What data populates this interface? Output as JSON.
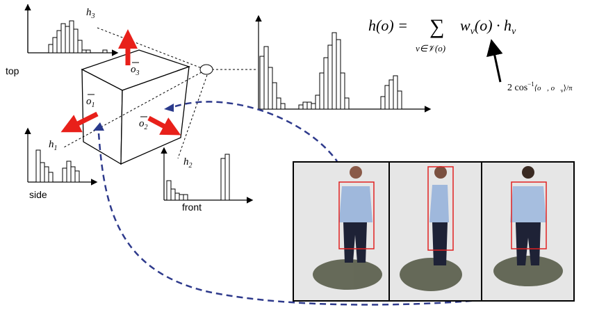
{
  "labels": {
    "top": "top",
    "side": "side",
    "front": "front"
  },
  "histograms": [
    {
      "symbol": "h",
      "subscript": "1"
    },
    {
      "symbol": "h",
      "subscript": "2"
    },
    {
      "symbol": "h",
      "subscript": "3"
    }
  ],
  "orientations": [
    {
      "symbol": "o",
      "subscript": "1"
    },
    {
      "symbol": "o",
      "subscript": "2"
    },
    {
      "symbol": "o",
      "subscript": "3"
    }
  ],
  "formula": {
    "lhs": "h(o) =",
    "sum": "∑",
    "sum_index": "v∈𝒱(o)",
    "weight": "w",
    "weight_sub": "v",
    "middle": "(o) · h",
    "h_sub": "v"
  },
  "weight_note": {
    "prefix": "2 cos",
    "power": "−1",
    "argument": "⟨o⃗, o⃗",
    "argument_sub": "v",
    "suffix": "⟩/π"
  }
}
